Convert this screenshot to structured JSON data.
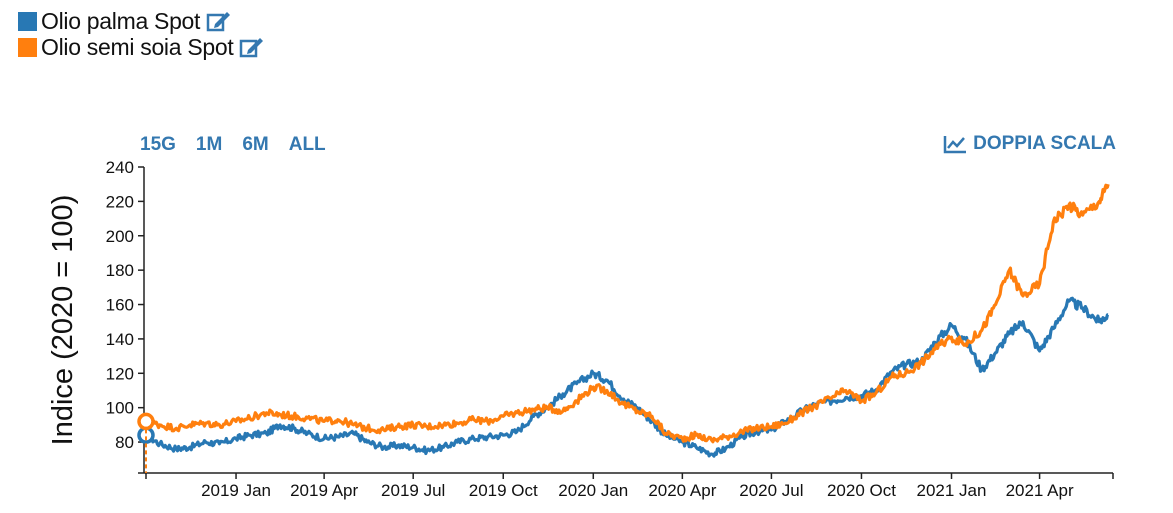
{
  "legend": [
    {
      "label": "Olio palma Spot",
      "color": "#2878b4",
      "icon": "edit-icon"
    },
    {
      "label": "Olio semi soia Spot",
      "color": "#ff7f0e",
      "icon": "edit-icon"
    }
  ],
  "controls": {
    "ranges": [
      "15G",
      "1M",
      "6M",
      "ALL"
    ],
    "dual_scale_label": "DOPPIA SCALA",
    "dual_scale_icon": "line-chart-icon",
    "accent": "#3478b0"
  },
  "chart_data": {
    "type": "line",
    "ylabel": "Indice (2020 = 100)",
    "xlabel": "",
    "ylim": [
      62,
      240
    ],
    "yticks": [
      80,
      100,
      120,
      140,
      160,
      180,
      200,
      220,
      240
    ],
    "xlim": [
      "2018-10-01",
      "2021-06-15"
    ],
    "xticks": [
      {
        "date": "2019-01-01",
        "label": "2019 Jan"
      },
      {
        "date": "2019-04-01",
        "label": "2019 Apr"
      },
      {
        "date": "2019-07-01",
        "label": "2019 Jul"
      },
      {
        "date": "2019-10-01",
        "label": "2019 Oct"
      },
      {
        "date": "2020-01-01",
        "label": "2020 Jan"
      },
      {
        "date": "2020-04-01",
        "label": "2020 Apr"
      },
      {
        "date": "2020-07-01",
        "label": "2020 Jul"
      },
      {
        "date": "2020-10-01",
        "label": "2020 Oct"
      },
      {
        "date": "2021-01-01",
        "label": "2021 Jan"
      },
      {
        "date": "2021-04-01",
        "label": "2021 Apr"
      }
    ],
    "grid": false,
    "series": [
      {
        "name": "Olio palma Spot",
        "color": "#2878b4",
        "points": [
          [
            "2018-10-01",
            84
          ],
          [
            "2018-10-15",
            79
          ],
          [
            "2018-11-01",
            76
          ],
          [
            "2018-11-15",
            77
          ],
          [
            "2018-12-01",
            80
          ],
          [
            "2018-12-15",
            79
          ],
          [
            "2019-01-01",
            82
          ],
          [
            "2019-01-15",
            84
          ],
          [
            "2019-02-01",
            85
          ],
          [
            "2019-02-15",
            90
          ],
          [
            "2019-03-01",
            88
          ],
          [
            "2019-03-15",
            85
          ],
          [
            "2019-04-01",
            82
          ],
          [
            "2019-04-15",
            83
          ],
          [
            "2019-05-01",
            85
          ],
          [
            "2019-05-15",
            80
          ],
          [
            "2019-06-01",
            77
          ],
          [
            "2019-06-15",
            78
          ],
          [
            "2019-07-01",
            77
          ],
          [
            "2019-07-15",
            75
          ],
          [
            "2019-08-01",
            77
          ],
          [
            "2019-08-15",
            80
          ],
          [
            "2019-09-01",
            82
          ],
          [
            "2019-09-15",
            83
          ],
          [
            "2019-10-01",
            84
          ],
          [
            "2019-10-15",
            86
          ],
          [
            "2019-11-01",
            95
          ],
          [
            "2019-11-15",
            100
          ],
          [
            "2019-12-01",
            108
          ],
          [
            "2019-12-15",
            114
          ],
          [
            "2020-01-01",
            120
          ],
          [
            "2020-01-15",
            116
          ],
          [
            "2020-02-01",
            105
          ],
          [
            "2020-02-15",
            100
          ],
          [
            "2020-03-01",
            92
          ],
          [
            "2020-03-15",
            84
          ],
          [
            "2020-04-01",
            80
          ],
          [
            "2020-04-15",
            77
          ],
          [
            "2020-05-01",
            73
          ],
          [
            "2020-05-15",
            76
          ],
          [
            "2020-06-01",
            83
          ],
          [
            "2020-06-15",
            86
          ],
          [
            "2020-07-01",
            87
          ],
          [
            "2020-07-15",
            92
          ],
          [
            "2020-08-01",
            98
          ],
          [
            "2020-08-15",
            102
          ],
          [
            "2020-09-01",
            104
          ],
          [
            "2020-09-15",
            106
          ],
          [
            "2020-10-01",
            107
          ],
          [
            "2020-10-15",
            110
          ],
          [
            "2020-11-01",
            121
          ],
          [
            "2020-11-15",
            125
          ],
          [
            "2020-12-01",
            127
          ],
          [
            "2020-12-15",
            138
          ],
          [
            "2021-01-01",
            148
          ],
          [
            "2021-01-15",
            140
          ],
          [
            "2021-02-01",
            122
          ],
          [
            "2021-02-15",
            132
          ],
          [
            "2021-03-01",
            143
          ],
          [
            "2021-03-15",
            150
          ],
          [
            "2021-04-01",
            133
          ],
          [
            "2021-04-15",
            146
          ],
          [
            "2021-05-01",
            162
          ],
          [
            "2021-05-15",
            158
          ],
          [
            "2021-06-01",
            150
          ],
          [
            "2021-06-10",
            154
          ]
        ]
      },
      {
        "name": "Olio semi soia Spot",
        "color": "#ff7f0e",
        "points": [
          [
            "2018-10-01",
            92
          ],
          [
            "2018-10-15",
            90
          ],
          [
            "2018-11-01",
            88
          ],
          [
            "2018-11-15",
            90
          ],
          [
            "2018-12-01",
            91
          ],
          [
            "2018-12-15",
            90
          ],
          [
            "2019-01-01",
            92
          ],
          [
            "2019-01-15",
            94
          ],
          [
            "2019-02-01",
            97
          ],
          [
            "2019-02-15",
            96
          ],
          [
            "2019-03-01",
            95
          ],
          [
            "2019-03-15",
            94
          ],
          [
            "2019-04-01",
            92
          ],
          [
            "2019-04-15",
            93
          ],
          [
            "2019-05-01",
            90
          ],
          [
            "2019-05-15",
            88
          ],
          [
            "2019-06-01",
            87
          ],
          [
            "2019-06-15",
            89
          ],
          [
            "2019-07-01",
            90
          ],
          [
            "2019-07-15",
            89
          ],
          [
            "2019-08-01",
            90
          ],
          [
            "2019-08-15",
            91
          ],
          [
            "2019-09-01",
            93
          ],
          [
            "2019-09-15",
            92
          ],
          [
            "2019-10-01",
            95
          ],
          [
            "2019-10-15",
            97
          ],
          [
            "2019-11-01",
            99
          ],
          [
            "2019-11-15",
            100
          ],
          [
            "2019-12-01",
            98
          ],
          [
            "2019-12-15",
            104
          ],
          [
            "2020-01-01",
            112
          ],
          [
            "2020-01-15",
            110
          ],
          [
            "2020-02-01",
            102
          ],
          [
            "2020-02-15",
            98
          ],
          [
            "2020-03-01",
            95
          ],
          [
            "2020-03-15",
            85
          ],
          [
            "2020-04-01",
            82
          ],
          [
            "2020-04-15",
            84
          ],
          [
            "2020-05-01",
            81
          ],
          [
            "2020-05-15",
            83
          ],
          [
            "2020-06-01",
            86
          ],
          [
            "2020-06-15",
            88
          ],
          [
            "2020-07-01",
            89
          ],
          [
            "2020-07-15",
            91
          ],
          [
            "2020-08-01",
            97
          ],
          [
            "2020-08-15",
            101
          ],
          [
            "2020-09-01",
            106
          ],
          [
            "2020-09-15",
            110
          ],
          [
            "2020-10-01",
            104
          ],
          [
            "2020-10-15",
            108
          ],
          [
            "2020-11-01",
            118
          ],
          [
            "2020-11-15",
            120
          ],
          [
            "2020-12-01",
            126
          ],
          [
            "2020-12-15",
            134
          ],
          [
            "2021-01-01",
            141
          ],
          [
            "2021-01-15",
            137
          ],
          [
            "2021-02-01",
            145
          ],
          [
            "2021-02-15",
            160
          ],
          [
            "2021-03-01",
            180
          ],
          [
            "2021-03-15",
            165
          ],
          [
            "2021-04-01",
            172
          ],
          [
            "2021-04-15",
            208
          ],
          [
            "2021-05-01",
            218
          ],
          [
            "2021-05-15",
            212
          ],
          [
            "2021-06-01",
            220
          ],
          [
            "2021-06-10",
            230
          ]
        ]
      }
    ]
  }
}
